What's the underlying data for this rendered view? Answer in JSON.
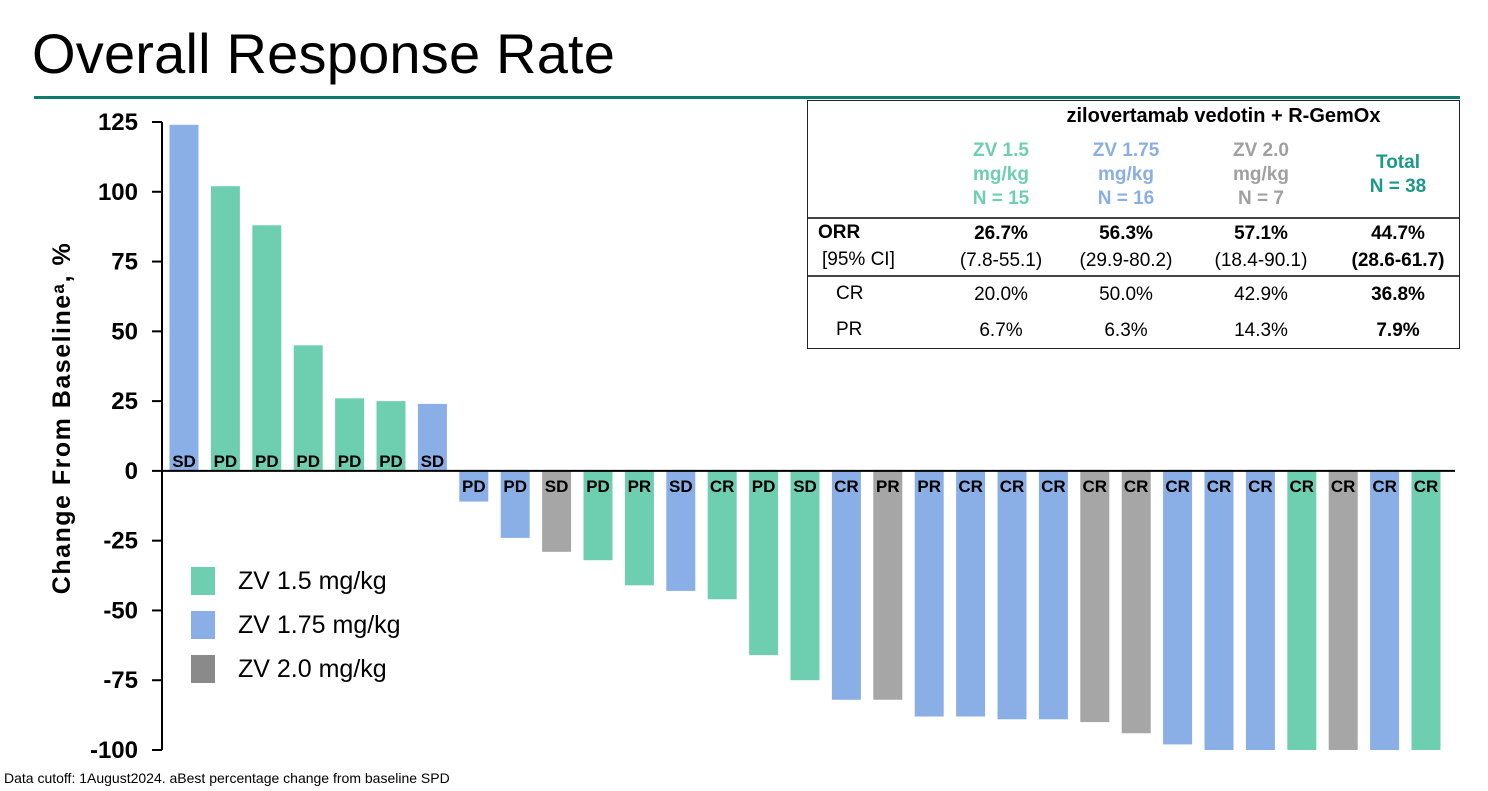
{
  "title": "Overall Response Rate",
  "footnote": "Data cutoff: 1August2024. aBest percentage change from baseline SPD",
  "colors": {
    "zv15": "#6ecfb0",
    "zv175": "#8aafe6",
    "zv20": "#a6a6a6",
    "accent": "#0f7b6f"
  },
  "chart_data": {
    "type": "bar",
    "ylabel": "Change From Baselineᵃ, %",
    "ylim": [
      -100,
      125
    ],
    "yticks": [
      125,
      100,
      75,
      50,
      25,
      0,
      -25,
      -50,
      -75,
      -100
    ],
    "legend_position": "bottom-left",
    "legend": [
      {
        "name": "ZV 1.5 mg/kg",
        "color": "#6ecfb0"
      },
      {
        "name": "ZV 1.75 mg/kg",
        "color": "#8aafe6"
      },
      {
        "name": "ZV 2.0 mg/kg",
        "color": "#8a8a8a"
      }
    ],
    "bars": [
      {
        "value": 124,
        "group": "zv175",
        "label": "SD"
      },
      {
        "value": 102,
        "group": "zv15",
        "label": "PD"
      },
      {
        "value": 88,
        "group": "zv15",
        "label": "PD"
      },
      {
        "value": 45,
        "group": "zv15",
        "label": "PD"
      },
      {
        "value": 26,
        "group": "zv15",
        "label": "PD"
      },
      {
        "value": 25,
        "group": "zv15",
        "label": "PD"
      },
      {
        "value": 24,
        "group": "zv175",
        "label": "SD"
      },
      {
        "value": -11,
        "group": "zv175",
        "label": "PD"
      },
      {
        "value": -24,
        "group": "zv175",
        "label": "PD"
      },
      {
        "value": -29,
        "group": "zv20",
        "label": "SD"
      },
      {
        "value": -32,
        "group": "zv15",
        "label": "PD"
      },
      {
        "value": -41,
        "group": "zv15",
        "label": "PR"
      },
      {
        "value": -43,
        "group": "zv175",
        "label": "SD"
      },
      {
        "value": -46,
        "group": "zv15",
        "label": "CR"
      },
      {
        "value": -66,
        "group": "zv15",
        "label": "PD"
      },
      {
        "value": -75,
        "group": "zv15",
        "label": "SD"
      },
      {
        "value": -82,
        "group": "zv175",
        "label": "CR"
      },
      {
        "value": -82,
        "group": "zv20",
        "label": "PR"
      },
      {
        "value": -88,
        "group": "zv175",
        "label": "PR"
      },
      {
        "value": -88,
        "group": "zv175",
        "label": "CR"
      },
      {
        "value": -89,
        "group": "zv175",
        "label": "CR"
      },
      {
        "value": -89,
        "group": "zv175",
        "label": "CR"
      },
      {
        "value": -90,
        "group": "zv20",
        "label": "CR"
      },
      {
        "value": -94,
        "group": "zv20",
        "label": "CR"
      },
      {
        "value": -98,
        "group": "zv175",
        "label": "CR"
      },
      {
        "value": -100,
        "group": "zv175",
        "label": "CR"
      },
      {
        "value": -100,
        "group": "zv175",
        "label": "CR"
      },
      {
        "value": -100,
        "group": "zv15",
        "label": "CR"
      },
      {
        "value": -100,
        "group": "zv20",
        "label": "CR"
      },
      {
        "value": -100,
        "group": "zv175",
        "label": "CR"
      },
      {
        "value": -100,
        "group": "zv15",
        "label": "CR"
      }
    ]
  },
  "table": {
    "header": "zilovertamab vedotin + R-GemOx",
    "columns": [
      {
        "lines": [
          "ZV 1.5",
          "mg/kg",
          "N = 15"
        ],
        "group": "zv15"
      },
      {
        "lines": [
          "ZV 1.75",
          "mg/kg",
          "N = 16"
        ],
        "group": "zv175"
      },
      {
        "lines": [
          "ZV 2.0",
          "mg/kg",
          "N = 7"
        ],
        "group": "zv20"
      },
      {
        "lines": [
          "Total",
          "N = 38"
        ],
        "group": "total"
      }
    ],
    "orr_label": "ORR",
    "ci_label": "[95% CI]",
    "orr": [
      "26.7%",
      "56.3%",
      "57.1%",
      "44.7%"
    ],
    "ci": [
      "(7.8-55.1)",
      "(29.9-80.2)",
      "(18.4-90.1)",
      "(28.6-61.7)"
    ],
    "cr_label": "CR",
    "cr": [
      "20.0%",
      "50.0%",
      "42.9%",
      "36.8%"
    ],
    "pr_label": "PR",
    "pr": [
      "6.7%",
      "6.3%",
      "14.3%",
      "7.9%"
    ]
  }
}
